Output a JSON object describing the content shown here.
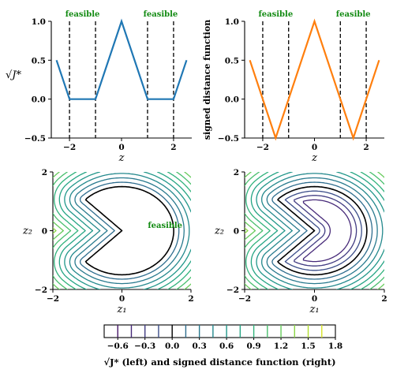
{
  "chart_data": [
    {
      "type": "line",
      "panel": "top-left",
      "xlabel": "z",
      "ylabel": "√J*",
      "xlim": [
        -2.7,
        2.7
      ],
      "ylim": [
        -0.5,
        1.0
      ],
      "xticks": [
        -2,
        0,
        2
      ],
      "yticks": [
        -0.5,
        0.0,
        0.5,
        1.0
      ],
      "ytick_labels": [
        "−0.5",
        "0.0",
        "0.5",
        "1.0"
      ],
      "series": [
        {
          "color": "#1f77b4",
          "x": [
            -2.5,
            -2,
            -1,
            0,
            1,
            2,
            2.5
          ],
          "y": [
            0.5,
            0.0,
            0.0,
            1.0,
            0.0,
            0.0,
            0.5
          ]
        }
      ],
      "vlines": [
        -2,
        -1,
        1,
        2
      ],
      "annotations": [
        {
          "text": "feasible",
          "x": -1.5
        },
        {
          "text": "feasible",
          "x": 1.5
        }
      ]
    },
    {
      "type": "line",
      "panel": "top-right",
      "xlabel": "z",
      "ylabel": "signed distance function",
      "xlim": [
        -2.7,
        2.7
      ],
      "ylim": [
        -0.5,
        1.0
      ],
      "xticks": [
        -2,
        0,
        2
      ],
      "yticks": [
        -0.5,
        0.0,
        0.5,
        1.0
      ],
      "ytick_labels": [
        "−0.5",
        "0.0",
        "0.5",
        "1.0"
      ],
      "series": [
        {
          "color": "#ff7f0e",
          "x": [
            -2.5,
            -1.5,
            0,
            1.5,
            2.5
          ],
          "y": [
            0.5,
            -0.5,
            1.0,
            -0.5,
            0.5
          ]
        }
      ],
      "vlines": [
        -2,
        -1,
        1,
        2
      ],
      "annotations": [
        {
          "text": "feasible",
          "x": -1.5
        },
        {
          "text": "feasible",
          "x": 1.5
        }
      ]
    },
    {
      "type": "contour",
      "panel": "bottom-left",
      "xlabel": "z₁",
      "ylabel": "z₂",
      "xlim": [
        -2,
        2
      ],
      "ylim": [
        -2,
        2
      ],
      "xticks": [
        -2,
        0,
        2
      ],
      "yticks": [
        -2,
        0,
        2
      ],
      "levels": [
        0.0,
        0.15,
        0.3,
        0.45,
        0.6,
        0.75,
        0.9,
        1.05,
        1.2,
        1.35,
        1.5,
        1.65
      ],
      "shape": {
        "circle_radius": 1.5,
        "notch_half_angle_deg": 45
      },
      "annotations": [
        {
          "text": "feasible",
          "x": 0.75,
          "y": 0.1
        }
      ]
    },
    {
      "type": "contour",
      "panel": "bottom-right",
      "xlabel": "z₁",
      "ylabel": "z₂",
      "xlim": [
        -2,
        2
      ],
      "ylim": [
        -2,
        2
      ],
      "xticks": [
        -2,
        0,
        2
      ],
      "yticks": [
        -2,
        0,
        2
      ],
      "levels": [
        -0.45,
        -0.3,
        -0.15,
        0.0,
        0.15,
        0.3,
        0.45,
        0.6,
        0.75,
        0.9,
        1.05,
        1.2,
        1.35,
        1.5,
        1.65
      ],
      "shape": {
        "circle_radius": 1.5,
        "notch_half_angle_deg": 45
      }
    },
    {
      "type": "colorbar",
      "label": "√J* (left) and signed distance function (right)",
      "range": [
        -0.75,
        1.8
      ],
      "ticks": [
        -0.6,
        -0.3,
        0.0,
        0.3,
        0.6,
        0.9,
        1.2,
        1.5,
        1.8
      ],
      "tick_labels": [
        "−0.6",
        "−0.3",
        "0.0",
        "0.3",
        "0.6",
        "0.9",
        "1.2",
        "1.5",
        "1.8"
      ],
      "lines": [
        -0.6,
        -0.45,
        -0.3,
        -0.15,
        0.0,
        0.15,
        0.3,
        0.45,
        0.6,
        0.75,
        0.9,
        1.05,
        1.2,
        1.35,
        1.5,
        1.65
      ],
      "colormap": "viridis"
    }
  ]
}
